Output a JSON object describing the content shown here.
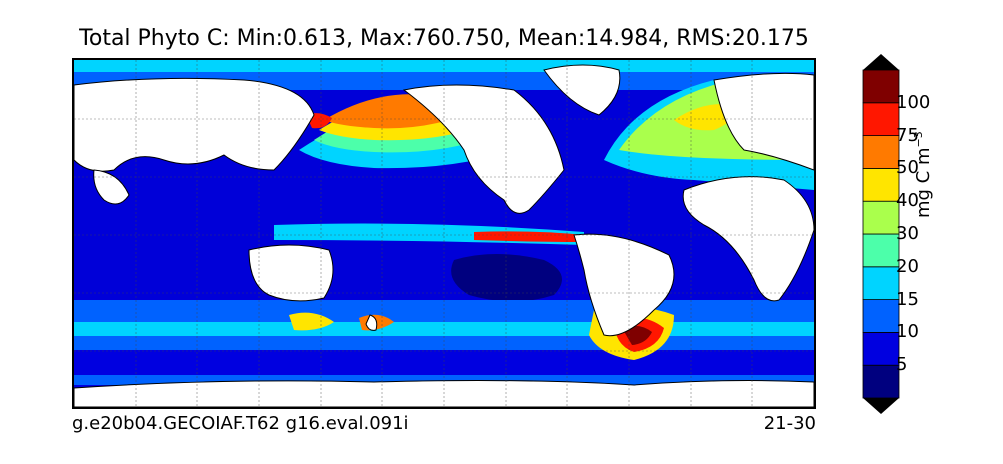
{
  "title": "Total Phyto C: Min:0.613, Max:760.750, Mean:14.984, RMS:20.175",
  "footer_left": "g.e20b04.GECOIAF.T62 g16.eval.091i",
  "footer_right": "21-30",
  "colorbar": {
    "label_main": "mg C m",
    "label_exp": "−3",
    "ticks": [
      "5",
      "10",
      "15",
      "20",
      "30",
      "40",
      "50",
      "75",
      "100"
    ],
    "levels": [
      {
        "color": "#00007f"
      },
      {
        "color": "#0000e0"
      },
      {
        "color": "#0062ff"
      },
      {
        "color": "#00d4ff"
      },
      {
        "color": "#4cffaa"
      },
      {
        "color": "#aaff4c"
      },
      {
        "color": "#ffe500"
      },
      {
        "color": "#ff7a00"
      },
      {
        "color": "#ff1700"
      },
      {
        "color": "#7f0000"
      }
    ]
  }
}
